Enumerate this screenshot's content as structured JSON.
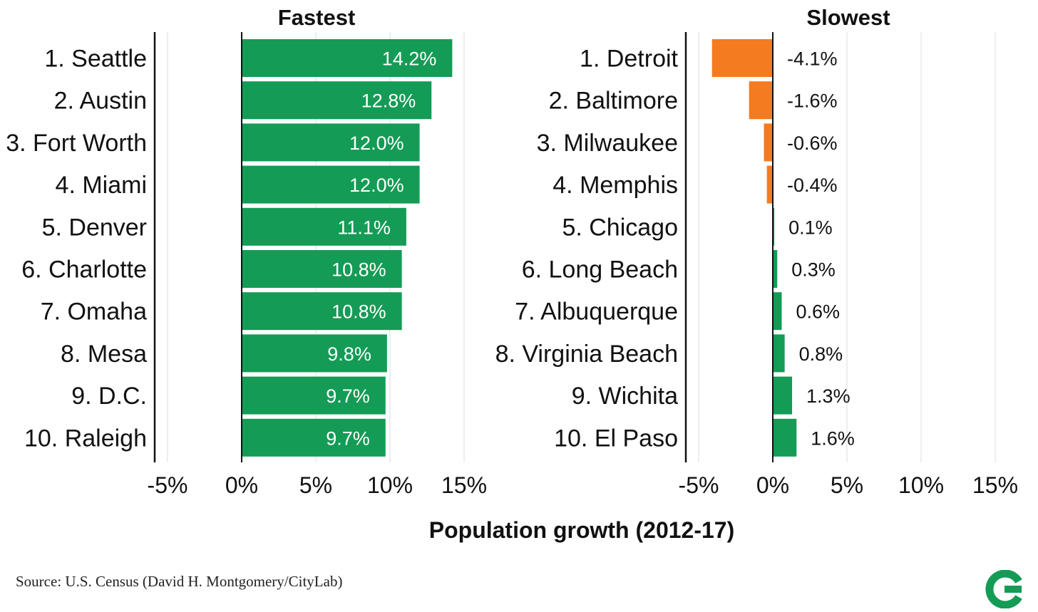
{
  "chart_data": [
    {
      "type": "bar",
      "orientation": "horizontal",
      "title": "Fastest",
      "categories": [
        "1. Seattle",
        "2. Austin",
        "3. Fort Worth",
        "4. Miami",
        "5. Denver",
        "6. Charlotte",
        "7. Omaha",
        "8. Mesa",
        "9. D.C.",
        "10. Raleigh"
      ],
      "values": [
        14.2,
        12.8,
        12.0,
        12.0,
        11.1,
        10.8,
        10.8,
        9.8,
        9.7,
        9.7
      ],
      "value_labels": [
        "14.2%",
        "12.8%",
        "12.0%",
        "12.0%",
        "11.1%",
        "10.8%",
        "10.8%",
        "9.8%",
        "9.7%",
        "9.7%"
      ],
      "xlim": [
        -5,
        15
      ],
      "xticks": [
        -5,
        0,
        5,
        10,
        15
      ],
      "xtick_labels": [
        "-5%",
        "0%",
        "5%",
        "10%",
        "15%"
      ],
      "grid": "vertical",
      "colors": {
        "positive": "#149B55",
        "negative": "#F47B20"
      }
    },
    {
      "type": "bar",
      "orientation": "horizontal",
      "title": "Slowest",
      "categories": [
        "1. Detroit",
        "2. Baltimore",
        "3. Milwaukee",
        "4. Memphis",
        "5. Chicago",
        "6. Long Beach",
        "7. Albuquerque",
        "8. Virginia Beach",
        "9. Wichita",
        "10. El Paso"
      ],
      "values": [
        -4.1,
        -1.6,
        -0.6,
        -0.4,
        0.1,
        0.3,
        0.6,
        0.8,
        1.3,
        1.6
      ],
      "value_labels": [
        "-4.1%",
        "-1.6%",
        "-0.6%",
        "-0.4%",
        "0.1%",
        "0.3%",
        "0.6%",
        "0.8%",
        "1.3%",
        "1.6%"
      ],
      "xlim": [
        -6,
        15
      ],
      "xticks": [
        -5,
        0,
        5,
        10,
        15
      ],
      "xtick_labels": [
        "-5%",
        "0%",
        "5%",
        "10%",
        "15%"
      ],
      "grid": "vertical",
      "colors": {
        "positive": "#149B55",
        "negative": "#F47B20"
      }
    }
  ],
  "xlabel": "Population growth (2012-17)",
  "source": "Source: U.S. Census (David H. Montgomery/CityLab)",
  "logo_icon": "citylab-logo-icon",
  "colors": {
    "logo": "#149B55"
  }
}
